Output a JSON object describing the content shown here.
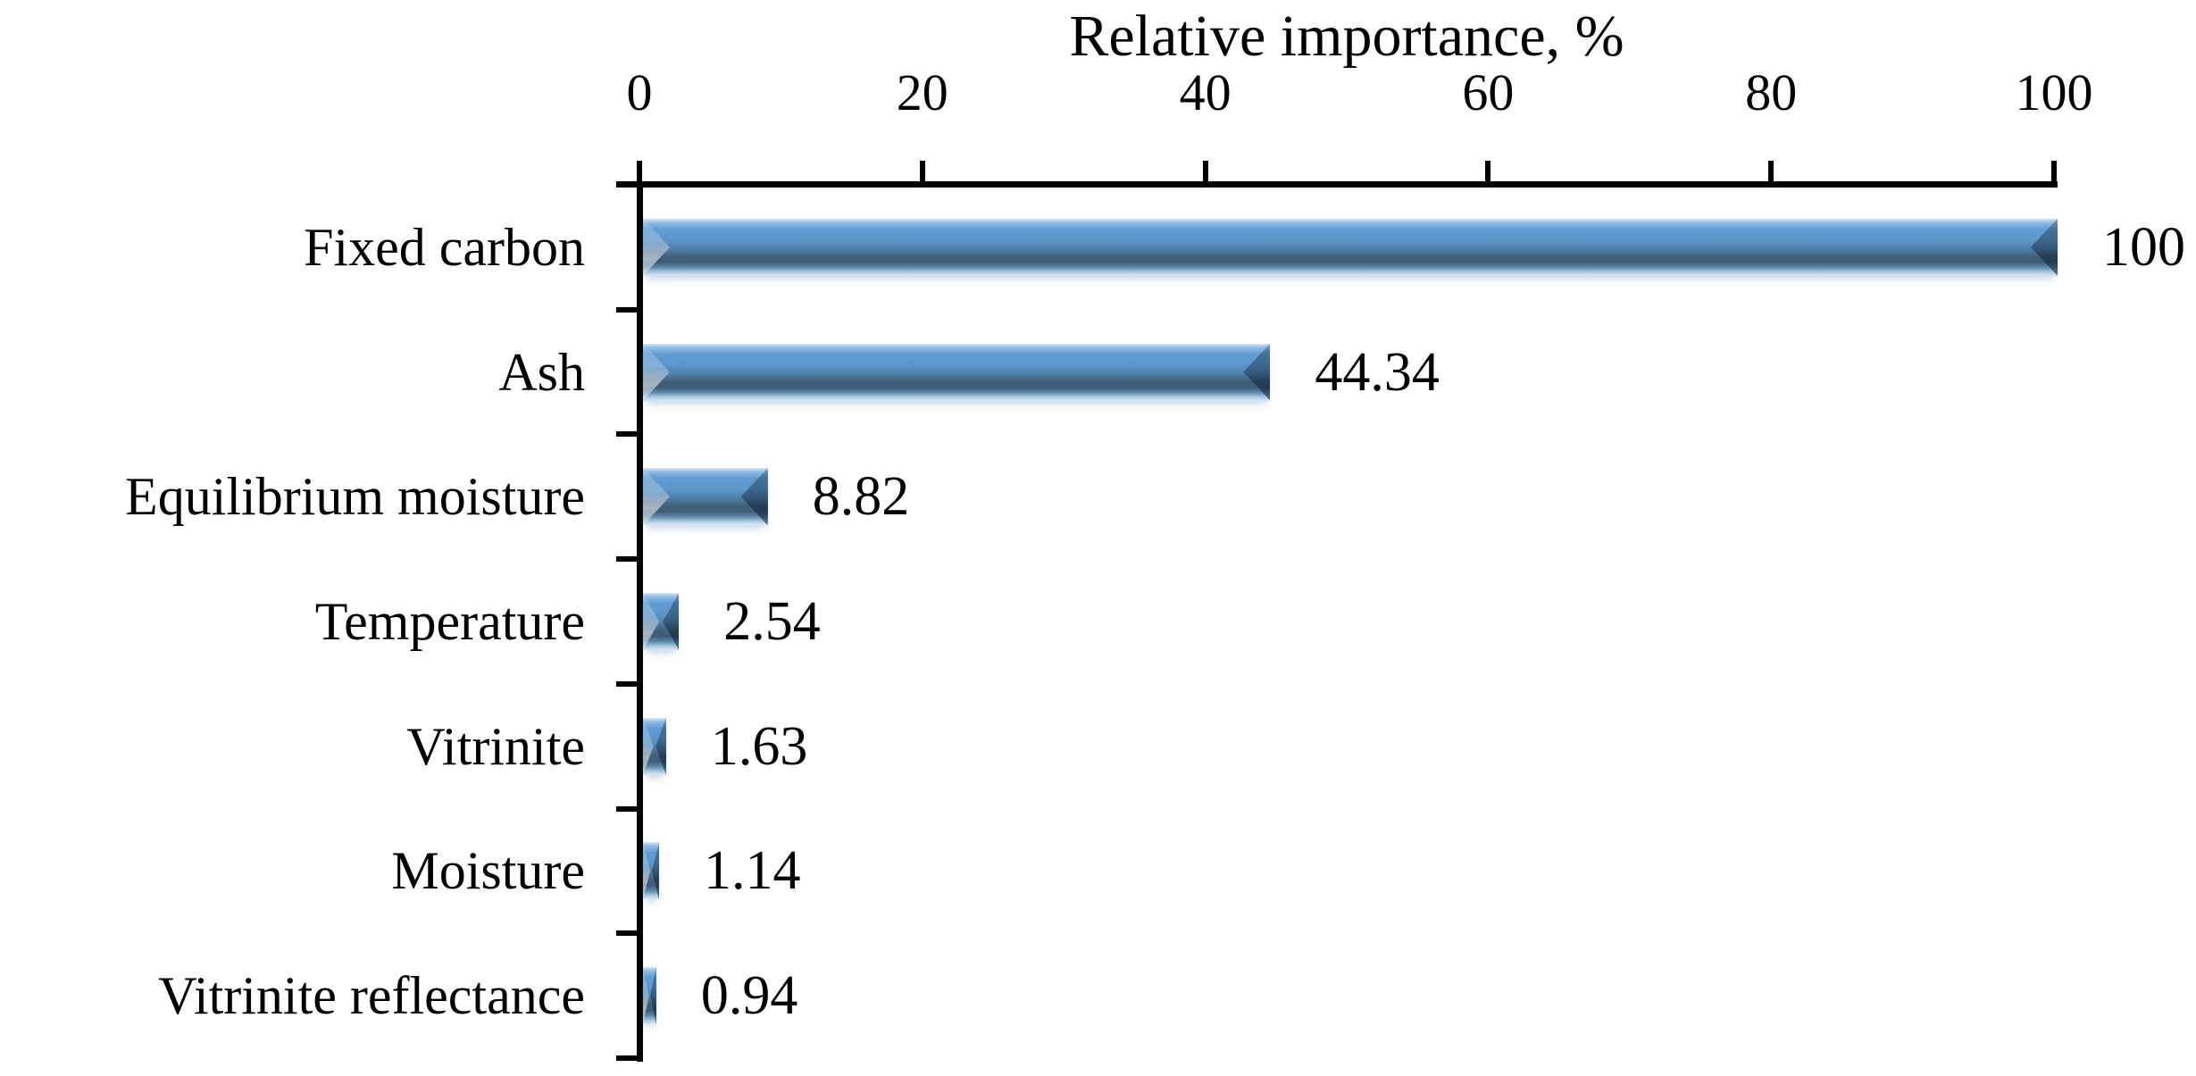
{
  "chart_data": {
    "type": "bar",
    "orientation": "horizontal",
    "title": "Relative importance, %",
    "categories": [
      "Fixed carbon",
      "Ash",
      "Equilibrium moisture",
      "Temperature",
      "Vitrinite",
      "Moisture",
      "Vitrinite reflectance"
    ],
    "values": [
      100,
      44.34,
      8.82,
      2.54,
      1.63,
      1.14,
      0.94
    ],
    "value_labels": [
      "100",
      "44.34",
      "8.82",
      "2.54",
      "1.63",
      "1.14",
      "0.94"
    ],
    "xlim": [
      0,
      100
    ],
    "xticks": [
      0,
      20,
      40,
      60,
      80,
      100
    ],
    "xtick_labels": [
      "0",
      "20",
      "40",
      "60",
      "80",
      "100"
    ],
    "axis_position": "top",
    "grid": false,
    "legend": "none",
    "colors": {
      "bar_light": "#6fa8dc",
      "bar_mid": "#5b95c9",
      "bar_dark": "#3d5d78",
      "axis": "#000000",
      "text": "#000000",
      "background": "#ffffff"
    }
  }
}
